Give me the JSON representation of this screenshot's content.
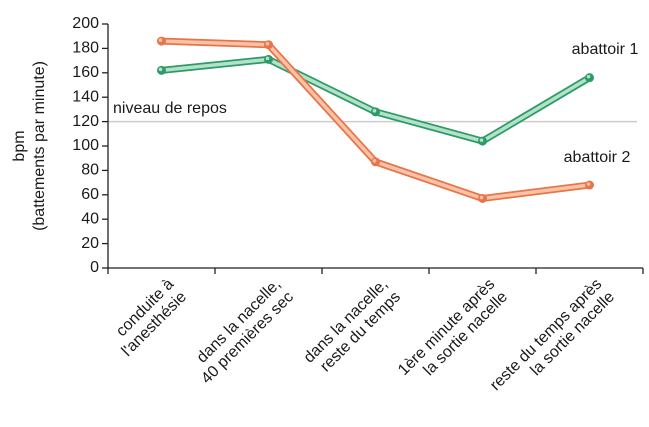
{
  "chart_data": {
    "type": "line",
    "y_label": [
      "bpm",
      "(battements par minute)"
    ],
    "categories": [
      [
        "conduite à",
        "l'anesthésie"
      ],
      [
        "dans la nacelle,",
        "40 premières sec"
      ],
      [
        "dans la nacelle,",
        "reste du temps"
      ],
      [
        "1ère minute après",
        "la sortie nacelle"
      ],
      [
        "reste du temps après",
        "la sortie nacelle"
      ]
    ],
    "series": [
      {
        "name": "abattoir 1",
        "color": "#2e9a68",
        "light": "#b2e2c8",
        "values": [
          162,
          171,
          128,
          104,
          156
        ]
      },
      {
        "name": "abattoir 2",
        "color": "#e8744a",
        "light": "#f8c2a6",
        "values": [
          186,
          183,
          87,
          57,
          68
        ]
      }
    ],
    "reference_line": {
      "value": 120,
      "label": "niveau de repos",
      "color": "#cccccc"
    },
    "ylim": [
      0,
      200
    ],
    "yticks": [
      0,
      20,
      40,
      60,
      80,
      100,
      120,
      140,
      160,
      180,
      200
    ]
  }
}
